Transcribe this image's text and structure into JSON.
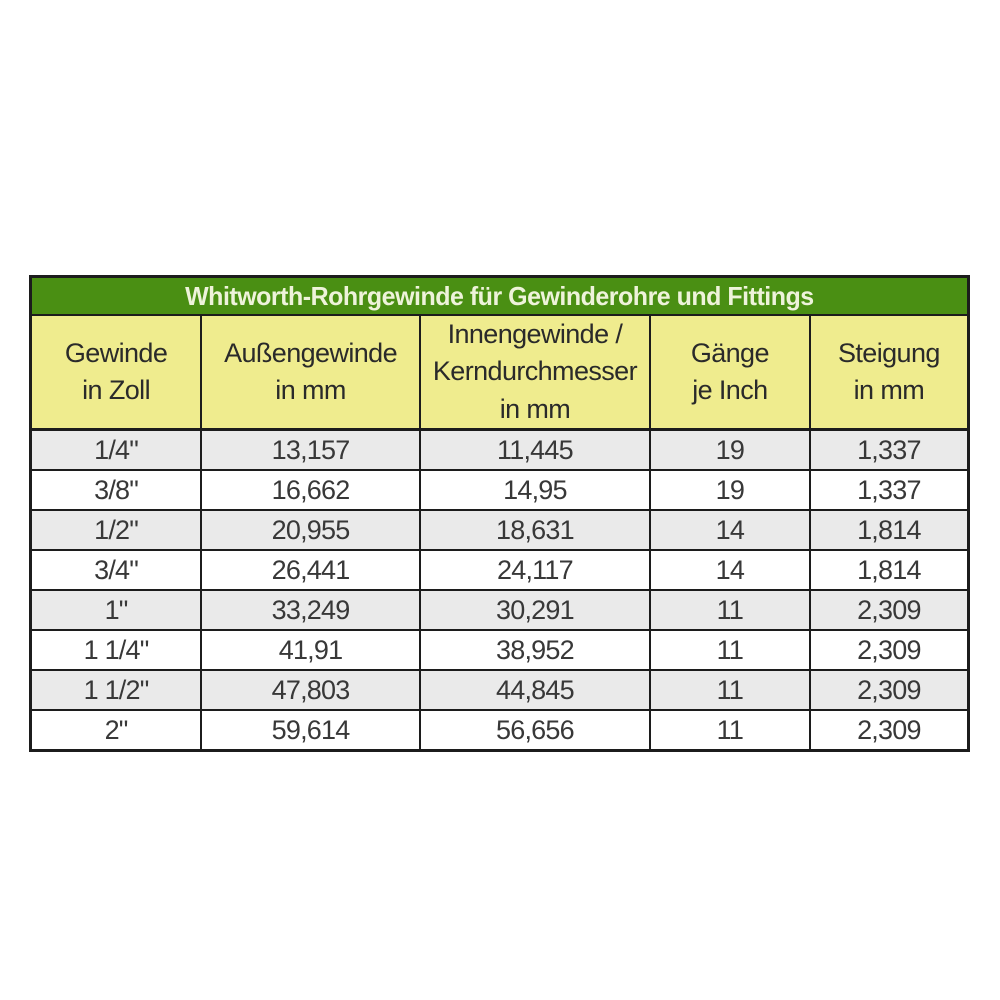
{
  "table": {
    "title": "Whitworth-Rohrgewinde für Gewinderohre und Fittings",
    "headers": [
      "Gewinde\nin Zoll",
      "Außengewinde\nin mm",
      "Innengewinde /\nKerndurchmesser\nin mm",
      "Gänge\nje Inch",
      "Steigung\nin mm"
    ],
    "rows": [
      [
        "1/4\"",
        "13,157",
        "11,445",
        "19",
        "1,337"
      ],
      [
        "3/8\"",
        "16,662",
        "14,95",
        "19",
        "1,337"
      ],
      [
        "1/2\"",
        "20,955",
        "18,631",
        "14",
        "1,814"
      ],
      [
        "3/4\"",
        "26,441",
        "24,117",
        "14",
        "1,814"
      ],
      [
        "1\"",
        "33,249",
        "30,291",
        "11",
        "2,309"
      ],
      [
        "1 1/4\"",
        "41,91",
        "38,952",
        "11",
        "2,309"
      ],
      [
        "1 1/2\"",
        "47,803",
        "44,845",
        "11",
        "2,309"
      ],
      [
        "2\"",
        "59,614",
        "56,656",
        "11",
        "2,309"
      ]
    ],
    "colors": {
      "title_background": "#4a8f13",
      "title_text": "#eef3da",
      "header_background": "#efec8e",
      "row_alt_background": "#eaeaea",
      "row_background": "#ffffff",
      "border": "#1c1c1c",
      "cell_text": "#383838"
    }
  }
}
